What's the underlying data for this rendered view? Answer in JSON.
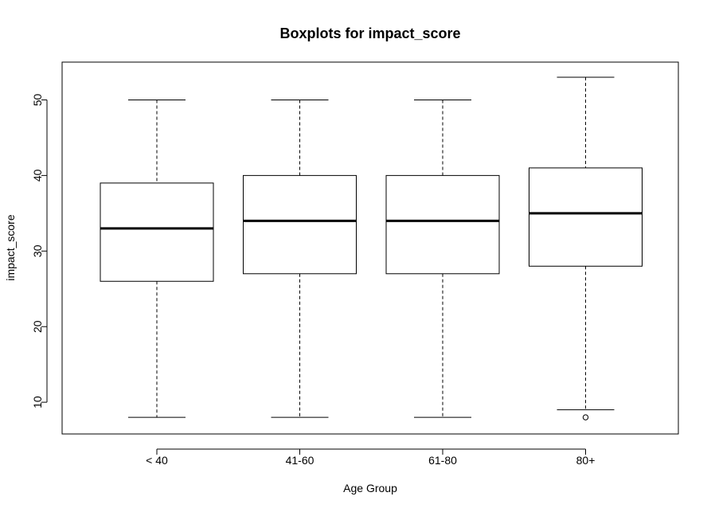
{
  "chart_data": {
    "type": "boxplot",
    "title": "Boxplots for impact_score",
    "xlabel": "Age Group",
    "ylabel": "impact_score",
    "categories": [
      "< 40",
      "41-60",
      "61-80",
      "80+"
    ],
    "y_ticks": [
      10,
      20,
      30,
      40,
      50
    ],
    "ylim": [
      5.8,
      55
    ],
    "grid": false,
    "boxes": [
      {
        "category": "< 40",
        "whisker_low": 8,
        "q1": 26,
        "median": 33,
        "q3": 39,
        "whisker_high": 50,
        "outliers": []
      },
      {
        "category": "41-60",
        "whisker_low": 8,
        "q1": 27,
        "median": 34,
        "q3": 40,
        "whisker_high": 50,
        "outliers": []
      },
      {
        "category": "61-80",
        "whisker_low": 8,
        "q1": 27,
        "median": 34,
        "q3": 40,
        "whisker_high": 50,
        "outliers": []
      },
      {
        "category": "80+",
        "whisker_low": 9,
        "q1": 28,
        "median": 35,
        "q3": 41,
        "whisker_high": 53,
        "outliers": [
          8
        ]
      }
    ],
    "colors": {
      "box_fill": "#ffffff",
      "stroke": "#000000"
    }
  }
}
